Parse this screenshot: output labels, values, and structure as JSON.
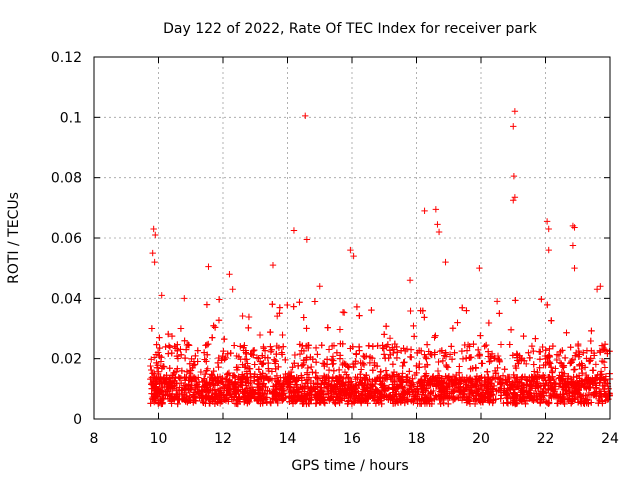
{
  "chart_data": {
    "type": "scatter",
    "title": "Day 122 of 2022, Rate Of TEC Index for receiver park",
    "xlabel": "GPS time / hours",
    "ylabel": "ROTI / TECUs",
    "xlim": [
      8,
      24
    ],
    "ylim": [
      0,
      0.12
    ],
    "xticks": [
      8,
      10,
      12,
      14,
      16,
      18,
      20,
      22,
      24
    ],
    "yticks": [
      0,
      0.02,
      0.04,
      0.06,
      0.08,
      0.1,
      0.12
    ],
    "xtick_labels": [
      "8",
      "10",
      "12",
      "14",
      "16",
      "18",
      "20",
      "22",
      "24"
    ],
    "ytick_labels": [
      "0",
      "0.02",
      "0.04",
      "0.06",
      "0.08",
      "0.1",
      "0.12"
    ],
    "grid": true,
    "marker": "+",
    "color": "#ff0000",
    "data_x_range": [
      9.75,
      24
    ],
    "bulk_range": [
      0.005,
      0.025
    ],
    "notable_points": [
      {
        "x": 9.85,
        "y": 0.063
      },
      {
        "x": 9.9,
        "y": 0.061
      },
      {
        "x": 9.82,
        "y": 0.055
      },
      {
        "x": 9.88,
        "y": 0.052
      },
      {
        "x": 14.2,
        "y": 0.0625
      },
      {
        "x": 14.55,
        "y": 0.1005
      },
      {
        "x": 14.6,
        "y": 0.0595
      },
      {
        "x": 11.55,
        "y": 0.0505
      },
      {
        "x": 12.2,
        "y": 0.048
      },
      {
        "x": 13.55,
        "y": 0.051
      },
      {
        "x": 15.95,
        "y": 0.056
      },
      {
        "x": 16.05,
        "y": 0.054
      },
      {
        "x": 18.25,
        "y": 0.069
      },
      {
        "x": 18.6,
        "y": 0.0695
      },
      {
        "x": 18.65,
        "y": 0.0645
      },
      {
        "x": 18.7,
        "y": 0.062
      },
      {
        "x": 18.9,
        "y": 0.052
      },
      {
        "x": 19.95,
        "y": 0.05
      },
      {
        "x": 21.05,
        "y": 0.102
      },
      {
        "x": 21.0,
        "y": 0.097
      },
      {
        "x": 21.02,
        "y": 0.0805
      },
      {
        "x": 21.05,
        "y": 0.0735
      },
      {
        "x": 21.0,
        "y": 0.0725
      },
      {
        "x": 22.05,
        "y": 0.0655
      },
      {
        "x": 22.1,
        "y": 0.063
      },
      {
        "x": 22.1,
        "y": 0.056
      },
      {
        "x": 22.85,
        "y": 0.064
      },
      {
        "x": 22.9,
        "y": 0.0635
      },
      {
        "x": 22.85,
        "y": 0.0575
      },
      {
        "x": 22.9,
        "y": 0.05
      },
      {
        "x": 23.6,
        "y": 0.043
      },
      {
        "x": 23.7,
        "y": 0.044
      },
      {
        "x": 10.1,
        "y": 0.041
      },
      {
        "x": 10.8,
        "y": 0.04
      },
      {
        "x": 12.3,
        "y": 0.043
      },
      {
        "x": 15.0,
        "y": 0.044
      },
      {
        "x": 17.8,
        "y": 0.046
      },
      {
        "x": 20.5,
        "y": 0.039
      }
    ]
  }
}
